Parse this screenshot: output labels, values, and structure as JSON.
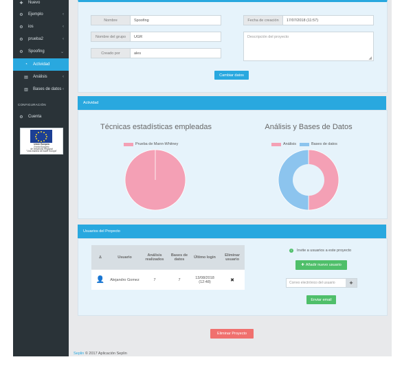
{
  "sidebar": {
    "items": [
      {
        "label": "Nuevo",
        "icon": "plus-icon",
        "chevron": false
      },
      {
        "label": "Ejemplo",
        "icon": "cog-icon",
        "chevron": true
      },
      {
        "label": "ios",
        "icon": "cog-icon",
        "chevron": true
      },
      {
        "label": "prueba2",
        "icon": "cog-icon",
        "chevron": true
      },
      {
        "label": "Spoofing",
        "icon": "cog-icon",
        "chevron": true
      }
    ],
    "subitems": [
      {
        "label": "Actividad",
        "icon": "activity-icon",
        "active": true
      },
      {
        "label": "Análisis",
        "icon": "list-icon",
        "active": false
      },
      {
        "label": "Bases de datos",
        "icon": "database-icon",
        "active": false
      }
    ],
    "section_label": "CONFIGURACIÓN",
    "account_label": "Cuenta",
    "eu_logo": {
      "line1": "Unión Europea",
      "line2": "Fondo Europeo",
      "line3": "de Desarrollo Regional",
      "line4": "\"Una manera de hacer Europa\""
    }
  },
  "project": {
    "name_label": "Nombre",
    "name_value": "Spoofing",
    "group_label": "Nombre del grupo",
    "group_value": "UGR",
    "creator_label": "Creado por",
    "creator_value": "ales",
    "date_label": "Fecha de creación",
    "date_value": "17/07/2018 (11:57)",
    "description_placeholder": "Descripción del proyecto",
    "save_button": "Cambiar datos"
  },
  "activity": {
    "header": "Actividad",
    "chart1_title": "Técnicas estadísticas empleadas",
    "chart2_title": "Análisis y Bases de Datos"
  },
  "chart_data": [
    {
      "type": "pie",
      "title": "Técnicas estadísticas empleadas",
      "categories": [
        "Prueba de Mann-Whitney"
      ],
      "values": [
        1
      ],
      "colors": [
        "#f4a0b5"
      ]
    },
    {
      "type": "pie",
      "title": "Análisis y Bases de Datos",
      "categories": [
        "Análisis",
        "Bases de datos"
      ],
      "values": [
        1,
        1
      ],
      "colors": [
        "#f4a0b5",
        "#8cc4ee"
      ],
      "donut": true
    }
  ],
  "users": {
    "header": "Usuarios del Proyecto",
    "columns": [
      "Usuario",
      "Análisis realizados",
      "Bases de datos",
      "Último login",
      "Eliminar usuario"
    ],
    "rows": [
      {
        "name": "Alejandro Gomez",
        "analyses": "7",
        "databases": "7",
        "last_login": "13/08/2018 (12:48)"
      }
    ],
    "invite_text": "Invite a usuarios a este proyecto",
    "add_button": "Añadir nuevo usuario",
    "email_placeholder": "Correo electrónico del usuario",
    "send_button": "Enviar email"
  },
  "delete_button": "Eliminar Proyecto",
  "footer": {
    "brand": "Seplin",
    "text": "© 2017 Aplicación Seplin"
  },
  "colors": {
    "accent": "#29a8df",
    "sidebar": "#2a3338",
    "success": "#4fbf6a",
    "danger": "#f0706e",
    "pink": "#f4a0b5",
    "blue": "#8cc4ee"
  }
}
